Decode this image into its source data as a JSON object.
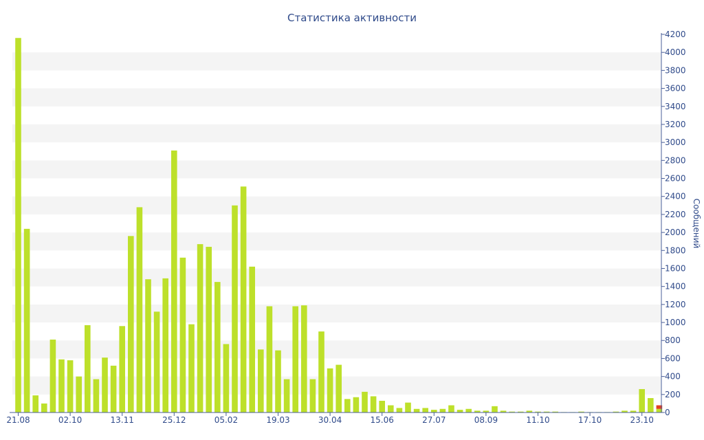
{
  "chart_data": {
    "type": "bar",
    "title": "Статистика активности",
    "xlabel": "",
    "ylabel": "Сообщений",
    "ylim": [
      0,
      4200
    ],
    "y_ticks": [
      0,
      200,
      400,
      600,
      800,
      1000,
      1200,
      1400,
      1600,
      1800,
      2000,
      2200,
      2400,
      2600,
      2800,
      3000,
      3200,
      3400,
      3600,
      3800,
      4000,
      4200
    ],
    "y_axis_position": "right",
    "grid": "alternating horizontal bands",
    "x_tick_labels": [
      {
        "label": "21.08",
        "index": 0
      },
      {
        "label": "02.10",
        "index": 6
      },
      {
        "label": "13.11",
        "index": 12
      },
      {
        "label": "25.12",
        "index": 18
      },
      {
        "label": "05.02",
        "index": 24
      },
      {
        "label": "19.03",
        "index": 30
      },
      {
        "label": "30.04",
        "index": 36
      },
      {
        "label": "15.06",
        "index": 42
      },
      {
        "label": "27.07",
        "index": 48
      },
      {
        "label": "08.09",
        "index": 54
      },
      {
        "label": "11.10",
        "index": 60
      },
      {
        "label": "17.10",
        "index": 66
      },
      {
        "label": "23.10",
        "index": 72
      }
    ],
    "series": [
      {
        "values": [
          4160,
          2040,
          190,
          100,
          810,
          590,
          580,
          400,
          970,
          370,
          610,
          520,
          960,
          1960,
          2280,
          1480,
          1120,
          1490,
          2910,
          1720,
          980,
          1870,
          1840,
          1450,
          760,
          2300,
          2510,
          1620,
          700,
          1180,
          690,
          370,
          1180,
          1190,
          370,
          900,
          490,
          530,
          150,
          170,
          230,
          180,
          130,
          80,
          50,
          110,
          40,
          50,
          30,
          40,
          80,
          30,
          40,
          20,
          20,
          70,
          20,
          10,
          10,
          20,
          10,
          10,
          10,
          5,
          5,
          10,
          5,
          5,
          5,
          10,
          20,
          20,
          260,
          160,
          40
        ],
        "color": "#bde02a"
      },
      {
        "values": [
          0,
          0,
          0,
          0,
          0,
          0,
          0,
          0,
          0,
          0,
          0,
          0,
          0,
          0,
          0,
          0,
          0,
          0,
          0,
          0,
          0,
          0,
          0,
          0,
          0,
          0,
          0,
          0,
          0,
          0,
          0,
          0,
          0,
          0,
          0,
          0,
          0,
          0,
          0,
          0,
          0,
          0,
          0,
          0,
          0,
          0,
          0,
          0,
          0,
          0,
          0,
          0,
          0,
          0,
          0,
          0,
          0,
          0,
          0,
          0,
          0,
          0,
          0,
          0,
          0,
          0,
          0,
          0,
          0,
          0,
          0,
          0,
          0,
          0,
          40
        ],
        "color": "#e04020"
      }
    ],
    "colors": {
      "bar": "#bde02a",
      "bar_secondary": "#e04020",
      "band": "#f4f4f4",
      "axis": "#4a5f9a",
      "text": "#2f4a8a"
    }
  }
}
